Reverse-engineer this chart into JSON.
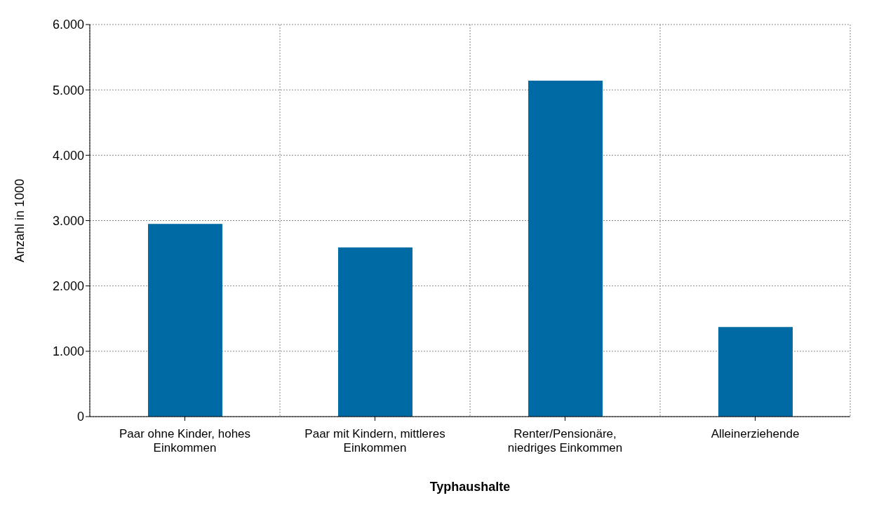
{
  "chart_data": {
    "type": "bar",
    "xlabel": "Typhaushalte",
    "ylabel": "Anzahl in 1000",
    "categories": [
      "Paar ohne Kinder, hohes Einkommen",
      "Paar mit Kindern, mittleres Einkommen",
      "Renter/Pensionäre, niedriges Einkommen",
      "Alleinerziehende"
    ],
    "values": [
      2950,
      2590,
      5140,
      1370
    ],
    "color": "#006aa5",
    "ylim": [
      0,
      6000
    ],
    "yticks": [
      0,
      {
        "value": 1000,
        "label": "1.000"
      },
      {
        "value": 2000,
        "label": "2.000"
      },
      {
        "value": 3000,
        "label": "3.000"
      },
      {
        "value": 4000,
        "label": "4.000"
      },
      {
        "value": 5000,
        "label": "5.000"
      },
      {
        "value": 6000,
        "label": "6.000"
      }
    ],
    "grid": true
  }
}
